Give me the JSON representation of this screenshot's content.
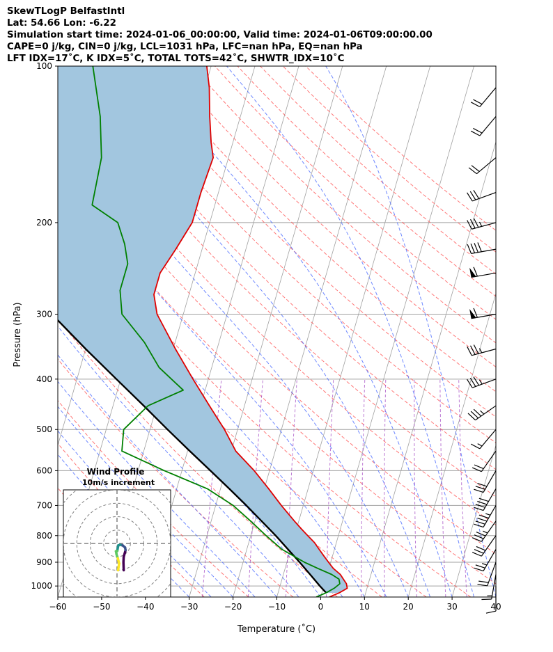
{
  "header_lines": [
    "SkewTLogP BelfastIntl",
    "Lat: 54.66   Lon: -6.22",
    "Simulation start time: 2024-01-06_00:00:00, Valid time: 2024-01-06T09:00:00.00",
    "CAPE=0 j/kg, CIN=0 j/kg, LCL=1031 hPa, LFC=nan hPa, EQ=nan hPa",
    "LFT IDX=17˚C, K IDX=5˚C, TOTAL TOTS=42˚C, SHWTR_IDX=10˚C"
  ],
  "colors": {
    "temperature": "#e00000",
    "dewpoint": "#008000",
    "parcel": "#000000",
    "cape_shading": "#a2c6df",
    "dry_adiabats": "#ff5555",
    "moist_adiabats": "#4a6aff",
    "mixing_ratio": "#a040c0",
    "isotherms": "#a0a0a0",
    "hodograph_ring": "#808080"
  },
  "chart_data": [
    {
      "type": "line",
      "subtype": "skewt-logp",
      "xlabel": "Temperature (˚C)",
      "ylabel": "Pressure (hPa)",
      "xlim": [
        -60,
        40
      ],
      "ylim": [
        1050,
        100
      ],
      "yscale": "log",
      "xticks": [
        -60,
        -50,
        -40,
        -30,
        -20,
        -10,
        0,
        10,
        20,
        30,
        40
      ],
      "xtick_labels": [
        "−60",
        "−50",
        "−40",
        "−30",
        "−20",
        "−10",
        "0",
        "10",
        "20",
        "30",
        "40"
      ],
      "yticks": [
        1000,
        900,
        800,
        700,
        600,
        500,
        400,
        300,
        200,
        100
      ],
      "ytick_labels": [
        "1000",
        "900",
        "800",
        "700",
        "600",
        "500",
        "400",
        "300",
        "200",
        "100"
      ],
      "grid": true,
      "series": [
        {
          "id": "temperature",
          "pressure": [
            1050,
            1030,
            1010,
            990,
            970,
            950,
            925,
            900,
            875,
            850,
            825,
            800,
            775,
            750,
            700,
            650,
            600,
            550,
            500,
            450,
            400,
            350,
            300,
            275,
            250,
            225,
            200,
            175,
            150,
            140,
            125,
            110,
            100
          ],
          "temperature": [
            2,
            4,
            5.5,
            5,
            4,
            3,
            1,
            -0.5,
            -2,
            -3.5,
            -5,
            -7,
            -9,
            -11,
            -15,
            -19,
            -23.5,
            -29,
            -33,
            -38,
            -43.5,
            -49.5,
            -56,
            -58,
            -58,
            -56,
            -54,
            -54,
            -53.5,
            -55,
            -57,
            -59,
            -61
          ]
        },
        {
          "id": "dewpoint",
          "pressure": [
            1050,
            1030,
            1010,
            990,
            970,
            950,
            925,
            900,
            850,
            800,
            750,
            700,
            650,
            600,
            550,
            500,
            450,
            420,
            380,
            340,
            300,
            270,
            240,
            220,
            200,
            185,
            150,
            125,
            100
          ],
          "temperature": [
            -1,
            1,
            2.5,
            3.5,
            3,
            1,
            -2.5,
            -6,
            -12,
            -16.5,
            -21,
            -26,
            -33,
            -44,
            -55,
            -56,
            -52,
            -45,
            -52,
            -57,
            -64,
            -66,
            -66,
            -68,
            -71,
            -78,
            -79,
            -82,
            -87
          ]
        },
        {
          "id": "parcel",
          "pressure": [
            1031,
            1000,
            950,
            900,
            850,
            800,
            750,
            700,
            650,
            600,
            550,
            500,
            450,
            400,
            350,
            300,
            250,
            200,
            150,
            100
          ],
          "temperature": [
            1,
            -0.9,
            -3.9,
            -7.1,
            -10.6,
            -14.3,
            -18.5,
            -23,
            -28,
            -33.5,
            -39.5,
            -46,
            -53,
            -61,
            -70,
            -80,
            -92,
            -106,
            -125,
            -155
          ]
        }
      ],
      "wind_barbs": {
        "pressure": [
          1000,
          950,
          900,
          850,
          800,
          750,
          700,
          650,
          600,
          550,
          500,
          450,
          400,
          350,
          300,
          250,
          225,
          200,
          175,
          150,
          125,
          110
        ],
        "speed_kt": [
          10,
          15,
          20,
          25,
          30,
          35,
          45,
          40,
          30,
          20,
          15,
          35,
          35,
          35,
          60,
          60,
          40,
          35,
          30,
          20,
          20,
          20
        ],
        "direction_deg": [
          180,
          190,
          200,
          210,
          215,
          215,
          210,
          210,
          210,
          215,
          220,
          235,
          250,
          255,
          260,
          260,
          260,
          255,
          250,
          230,
          220,
          220
        ]
      }
    },
    {
      "type": "line",
      "subtype": "hodograph",
      "title": "Wind Profile",
      "subtitle": "10m/s increment",
      "ring_spacing_ms": 10,
      "xlim": [
        -10,
        10
      ],
      "ylim": [
        -10,
        10
      ],
      "u": [
        2.5,
        2.4,
        2.5,
        3.2,
        3.0,
        2.2,
        1.3,
        0.5,
        0.3,
        0.1,
        -0.4,
        -0.2,
        0.3,
        0.8,
        0.4
      ],
      "v": [
        -10,
        -7,
        -5,
        -2.5,
        -1.5,
        -0.8,
        -0.5,
        -0.7,
        -1.6,
        -2.8,
        -2.9,
        -4.0,
        -5.5,
        -7.5,
        -10
      ],
      "colormap": [
        "#440154",
        "#3b528b",
        "#21918c",
        "#5ec962",
        "#fde725"
      ]
    }
  ]
}
